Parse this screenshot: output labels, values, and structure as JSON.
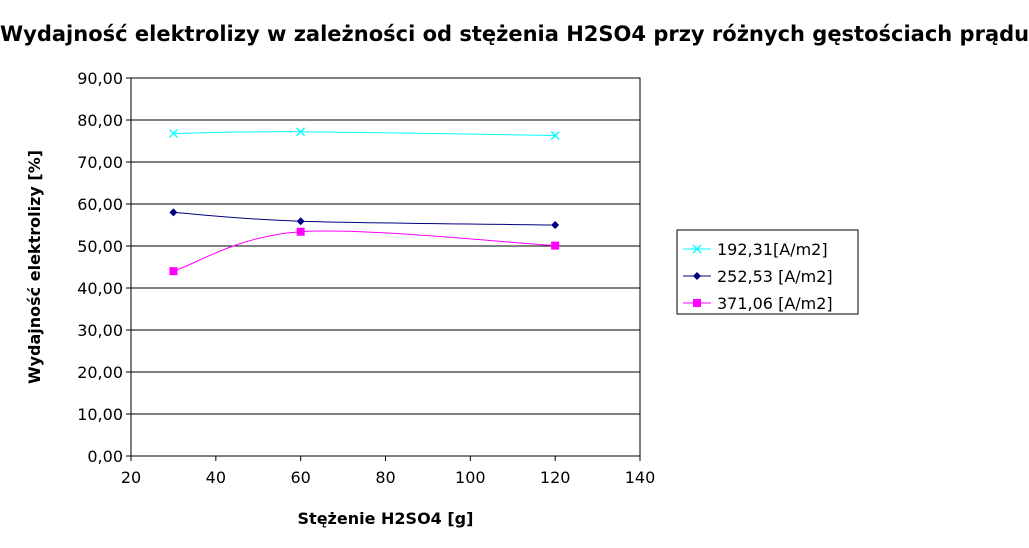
{
  "chart_data": {
    "type": "line",
    "title": "Wydajność elektrolizy w zależności od stężenia H2SO4 przy różnych gęstościach prądu",
    "xlabel": "Stężenie H2SO4 [g]",
    "ylabel": "Wydajność elektrolizy [%]",
    "xlim": [
      20,
      140
    ],
    "ylim": [
      0,
      90
    ],
    "x_ticks": [
      "20",
      "40",
      "60",
      "80",
      "100",
      "120",
      "140"
    ],
    "y_ticks": [
      "0,00",
      "10,00",
      "20,00",
      "30,00",
      "40,00",
      "50,00",
      "60,00",
      "70,00",
      "80,00",
      "90,00"
    ],
    "grid": "horizontal",
    "legend_position": "right",
    "series": [
      {
        "name": "192,31[A/m2]",
        "x": [
          30,
          60,
          120
        ],
        "values": [
          76.8,
          77.2,
          76.3
        ],
        "color": "#00ffff",
        "marker": "x"
      },
      {
        "name": "252,53 [A/m2]",
        "x": [
          30,
          60,
          120
        ],
        "values": [
          58.0,
          55.9,
          55.0
        ],
        "color": "#000080",
        "marker": "diamond"
      },
      {
        "name": "371,06 [A/m2]",
        "x": [
          30,
          60,
          120
        ],
        "values": [
          44.0,
          53.4,
          50.1
        ],
        "color": "#ff00ff",
        "marker": "square"
      }
    ]
  }
}
